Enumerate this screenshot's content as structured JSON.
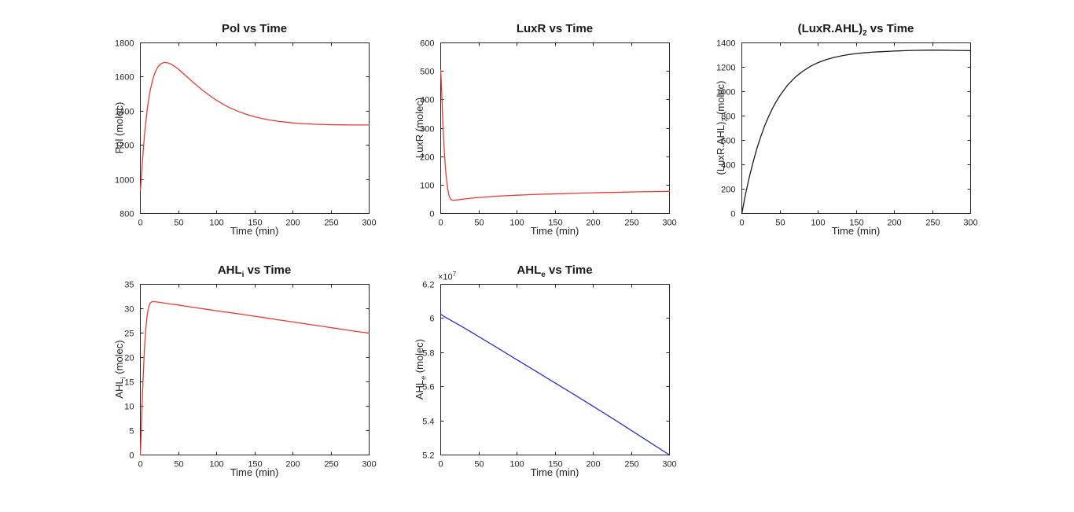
{
  "figure": {
    "background": "#ffffff",
    "axis_color": "#262626",
    "title_color": "#1a1a1a"
  },
  "chart_data": [
    {
      "type": "line",
      "title": {
        "pre": "Pol",
        "sub": "",
        "post": " vs Time"
      },
      "xlabel": "Time (min)",
      "ylabel": {
        "pre": "Pol (molec)",
        "sub": "",
        "post": ""
      },
      "line_color": "#ee3a30",
      "xlim": [
        0,
        300
      ],
      "ylim": [
        800,
        1800
      ],
      "xticks": [
        0,
        50,
        100,
        150,
        200,
        250,
        300
      ],
      "yticks": [
        800,
        1000,
        1200,
        1400,
        1600,
        1800
      ],
      "grid": false,
      "legend": null,
      "points": [
        [
          0,
          935
        ],
        [
          1,
          990
        ],
        [
          2,
          1055
        ],
        [
          3,
          1120
        ],
        [
          4,
          1180
        ],
        [
          5,
          1235
        ],
        [
          6,
          1285
        ],
        [
          7,
          1330
        ],
        [
          8,
          1370
        ],
        [
          9,
          1407
        ],
        [
          10,
          1440
        ],
        [
          12,
          1497
        ],
        [
          14,
          1543
        ],
        [
          16,
          1580
        ],
        [
          18,
          1610
        ],
        [
          20,
          1634
        ],
        [
          23,
          1659
        ],
        [
          26,
          1674
        ],
        [
          29,
          1682
        ],
        [
          32,
          1685
        ],
        [
          36,
          1683
        ],
        [
          40,
          1676
        ],
        [
          45,
          1662
        ],
        [
          50,
          1645
        ],
        [
          60,
          1606
        ],
        [
          70,
          1566
        ],
        [
          80,
          1528
        ],
        [
          90,
          1494
        ],
        [
          100,
          1463
        ],
        [
          110,
          1437
        ],
        [
          120,
          1414
        ],
        [
          130,
          1396
        ],
        [
          140,
          1380
        ],
        [
          150,
          1367
        ],
        [
          160,
          1356
        ],
        [
          170,
          1348
        ],
        [
          180,
          1341
        ],
        [
          190,
          1336
        ],
        [
          200,
          1331
        ],
        [
          215,
          1326
        ],
        [
          230,
          1323
        ],
        [
          245,
          1321
        ],
        [
          260,
          1320
        ],
        [
          280,
          1319
        ],
        [
          300,
          1319
        ]
      ]
    },
    {
      "type": "line",
      "title": {
        "pre": "LuxR",
        "sub": "",
        "post": " vs Time"
      },
      "xlabel": "Time (min)",
      "ylabel": {
        "pre": "LuxR (molec)",
        "sub": "",
        "post": ""
      },
      "line_color": "#ee3a30",
      "xlim": [
        0,
        300
      ],
      "ylim": [
        0,
        600
      ],
      "xticks": [
        0,
        50,
        100,
        150,
        200,
        250,
        300
      ],
      "yticks": [
        0,
        100,
        200,
        300,
        400,
        500,
        600
      ],
      "grid": false,
      "legend": null,
      "points": [
        [
          0,
          505
        ],
        [
          1,
          450
        ],
        [
          2,
          380
        ],
        [
          3,
          315
        ],
        [
          4,
          258
        ],
        [
          5,
          210
        ],
        [
          6,
          170
        ],
        [
          7,
          137
        ],
        [
          8,
          111
        ],
        [
          9,
          90
        ],
        [
          10,
          74
        ],
        [
          11,
          63
        ],
        [
          12,
          55
        ],
        [
          13,
          51
        ],
        [
          14,
          48.5
        ],
        [
          16,
          47
        ],
        [
          18,
          47
        ],
        [
          20,
          47.5
        ],
        [
          25,
          49
        ],
        [
          30,
          51
        ],
        [
          40,
          54
        ],
        [
          50,
          56.5
        ],
        [
          65,
          59.5
        ],
        [
          80,
          62
        ],
        [
          100,
          64.5
        ],
        [
          120,
          66.5
        ],
        [
          140,
          68.5
        ],
        [
          160,
          70
        ],
        [
          180,
          71.5
        ],
        [
          200,
          73
        ],
        [
          220,
          74.2
        ],
        [
          240,
          75.3
        ],
        [
          260,
          76.2
        ],
        [
          280,
          77.1
        ],
        [
          300,
          78
        ]
      ]
    },
    {
      "type": "line",
      "title": {
        "pre": "(LuxR.AHL)",
        "sub": "2",
        "post": " vs Time"
      },
      "xlabel": "Time (min)",
      "ylabel": {
        "pre": "(LuxR.AHL)",
        "sub": "2",
        "post": " (molec)"
      },
      "line_color": "#1a1a1a",
      "xlim": [
        0,
        300
      ],
      "ylim": [
        0,
        1400
      ],
      "xticks": [
        0,
        50,
        100,
        150,
        200,
        250,
        300
      ],
      "yticks": [
        0,
        200,
        400,
        600,
        800,
        1000,
        1200,
        1400
      ],
      "grid": false,
      "legend": null,
      "points": [
        [
          0,
          0
        ],
        [
          5,
          161
        ],
        [
          10,
          303
        ],
        [
          15,
          428
        ],
        [
          20,
          538
        ],
        [
          25,
          634
        ],
        [
          30,
          720
        ],
        [
          35,
          794
        ],
        [
          40,
          860
        ],
        [
          45,
          917
        ],
        [
          50,
          968
        ],
        [
          60,
          1053
        ],
        [
          70,
          1118
        ],
        [
          80,
          1168
        ],
        [
          90,
          1208
        ],
        [
          100,
          1238
        ],
        [
          110,
          1261
        ],
        [
          120,
          1279
        ],
        [
          130,
          1293
        ],
        [
          140,
          1304
        ],
        [
          150,
          1312
        ],
        [
          160,
          1318
        ],
        [
          170,
          1323
        ],
        [
          180,
          1327
        ],
        [
          190,
          1330
        ],
        [
          200,
          1333
        ],
        [
          215,
          1336
        ],
        [
          230,
          1339
        ],
        [
          245,
          1340
        ],
        [
          260,
          1340
        ],
        [
          280,
          1338
        ],
        [
          300,
          1336
        ]
      ]
    },
    {
      "type": "line",
      "title": {
        "pre": "AHL",
        "sub": "i",
        "post": " vs Time"
      },
      "xlabel": "Time (min)",
      "ylabel": {
        "pre": "AHL",
        "sub": "i",
        "post": " (molec)"
      },
      "line_color": "#ee3a30",
      "xlim": [
        0,
        300
      ],
      "ylim": [
        0,
        35
      ],
      "xticks": [
        0,
        50,
        100,
        150,
        200,
        250,
        300
      ],
      "yticks": [
        0,
        5,
        10,
        15,
        20,
        25,
        30,
        35
      ],
      "grid": false,
      "legend": null,
      "points": [
        [
          0,
          0
        ],
        [
          0.5,
          2
        ],
        [
          1,
          4.2
        ],
        [
          1.5,
          6.5
        ],
        [
          2,
          8.8
        ],
        [
          2.5,
          11
        ],
        [
          3,
          13.2
        ],
        [
          3.5,
          15.2
        ],
        [
          4,
          17.1
        ],
        [
          4.5,
          18.8
        ],
        [
          5,
          20.4
        ],
        [
          5.5,
          21.9
        ],
        [
          6,
          23.2
        ],
        [
          6.5,
          24.4
        ],
        [
          7,
          25.5
        ],
        [
          7.5,
          26.4
        ],
        [
          8,
          27.2
        ],
        [
          8.5,
          27.9
        ],
        [
          9,
          28.6
        ],
        [
          9.5,
          29.1
        ],
        [
          10,
          29.6
        ],
        [
          11,
          30.3
        ],
        [
          12,
          30.8
        ],
        [
          13,
          31.1
        ],
        [
          14,
          31.3
        ],
        [
          15,
          31.4
        ],
        [
          16,
          31.45
        ],
        [
          18,
          31.45
        ],
        [
          20,
          31.4
        ],
        [
          25,
          31.3
        ],
        [
          30,
          31.2
        ],
        [
          40,
          30.95
        ],
        [
          50,
          30.75
        ],
        [
          60,
          30.5
        ],
        [
          75,
          30.15
        ],
        [
          90,
          29.8
        ],
        [
          105,
          29.45
        ],
        [
          120,
          29.15
        ],
        [
          135,
          28.8
        ],
        [
          150,
          28.45
        ],
        [
          165,
          28.1
        ],
        [
          180,
          27.75
        ],
        [
          195,
          27.4
        ],
        [
          210,
          27.05
        ],
        [
          225,
          26.7
        ],
        [
          240,
          26.35
        ],
        [
          255,
          26.0
        ],
        [
          270,
          25.65
        ],
        [
          285,
          25.3
        ],
        [
          300,
          25
        ]
      ]
    },
    {
      "type": "line",
      "title": {
        "pre": "AHL",
        "sub": "e",
        "post": "  vs Time"
      },
      "xlabel": "Time (min)",
      "ylabel": {
        "pre": "AHL",
        "sub": "e",
        "post": " (molec)"
      },
      "exponent": {
        "text": "×10",
        "sup": "7"
      },
      "line_color": "#2c2cd8",
      "xlim": [
        0,
        300
      ],
      "ylim": [
        5.2,
        6.2
      ],
      "xticks": [
        0,
        50,
        100,
        150,
        200,
        250,
        300
      ],
      "yticks": [
        5.2,
        5.4,
        5.6,
        5.8,
        6,
        6.2
      ],
      "grid": false,
      "legend": null,
      "points": [
        [
          0,
          6.025
        ],
        [
          5,
          6.01
        ],
        [
          15,
          5.985
        ],
        [
          30,
          5.947
        ],
        [
          50,
          5.893
        ],
        [
          75,
          5.826
        ],
        [
          100,
          5.758
        ],
        [
          125,
          5.69
        ],
        [
          150,
          5.622
        ],
        [
          175,
          5.554
        ],
        [
          200,
          5.485
        ],
        [
          225,
          5.415
        ],
        [
          250,
          5.344
        ],
        [
          275,
          5.272
        ],
        [
          300,
          5.2
        ]
      ]
    }
  ]
}
